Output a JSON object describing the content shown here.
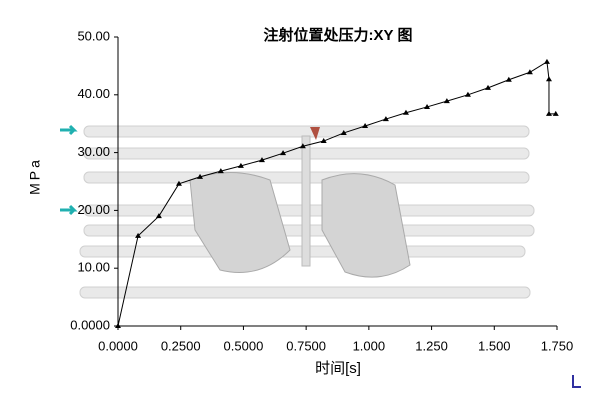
{
  "chart_data": {
    "type": "line",
    "title": "注射位置处压力:XY 图",
    "x_label": "时间[s]",
    "y_label": "MPa",
    "xlim": [
      0,
      1.75
    ],
    "ylim": [
      0,
      50
    ],
    "xticks": [
      {
        "value": 0,
        "label": "0.0000"
      },
      {
        "value": 0.25,
        "label": "0.2500"
      },
      {
        "value": 0.5,
        "label": "0.5000"
      },
      {
        "value": 0.75,
        "label": "0.7500"
      },
      {
        "value": 1,
        "label": "1.000"
      },
      {
        "value": 1.25,
        "label": "1.250"
      },
      {
        "value": 1.5,
        "label": "1.500"
      },
      {
        "value": 1.75,
        "label": "1.750"
      }
    ],
    "yticks": [
      {
        "value": 0,
        "label": "0.0000"
      },
      {
        "value": 10,
        "label": "10.00"
      },
      {
        "value": 20,
        "label": "20.00"
      },
      {
        "value": 30,
        "label": "30.00"
      },
      {
        "value": 40,
        "label": "40.00"
      },
      {
        "value": 50,
        "label": "50.00"
      }
    ],
    "x": [
      0,
      0.08,
      0.163,
      0.243,
      0.327,
      0.41,
      0.49,
      0.574,
      0.658,
      0.737,
      0.82,
      0.9,
      0.985,
      1.068,
      1.148,
      1.232,
      1.311,
      1.395,
      1.475,
      1.558,
      1.642,
      1.71,
      1.718,
      1.718,
      1.745
    ],
    "series": [
      {
        "color": "#000000",
        "values": [
          0,
          15.6,
          19.0,
          24.6,
          25.8,
          26.8,
          27.7,
          28.7,
          29.9,
          31.1,
          32.0,
          33.4,
          34.6,
          35.8,
          36.9,
          37.9,
          38.9,
          40.0,
          41.2,
          42.6,
          43.9,
          45.7,
          42.7,
          36.7,
          36.7
        ]
      }
    ]
  }
}
